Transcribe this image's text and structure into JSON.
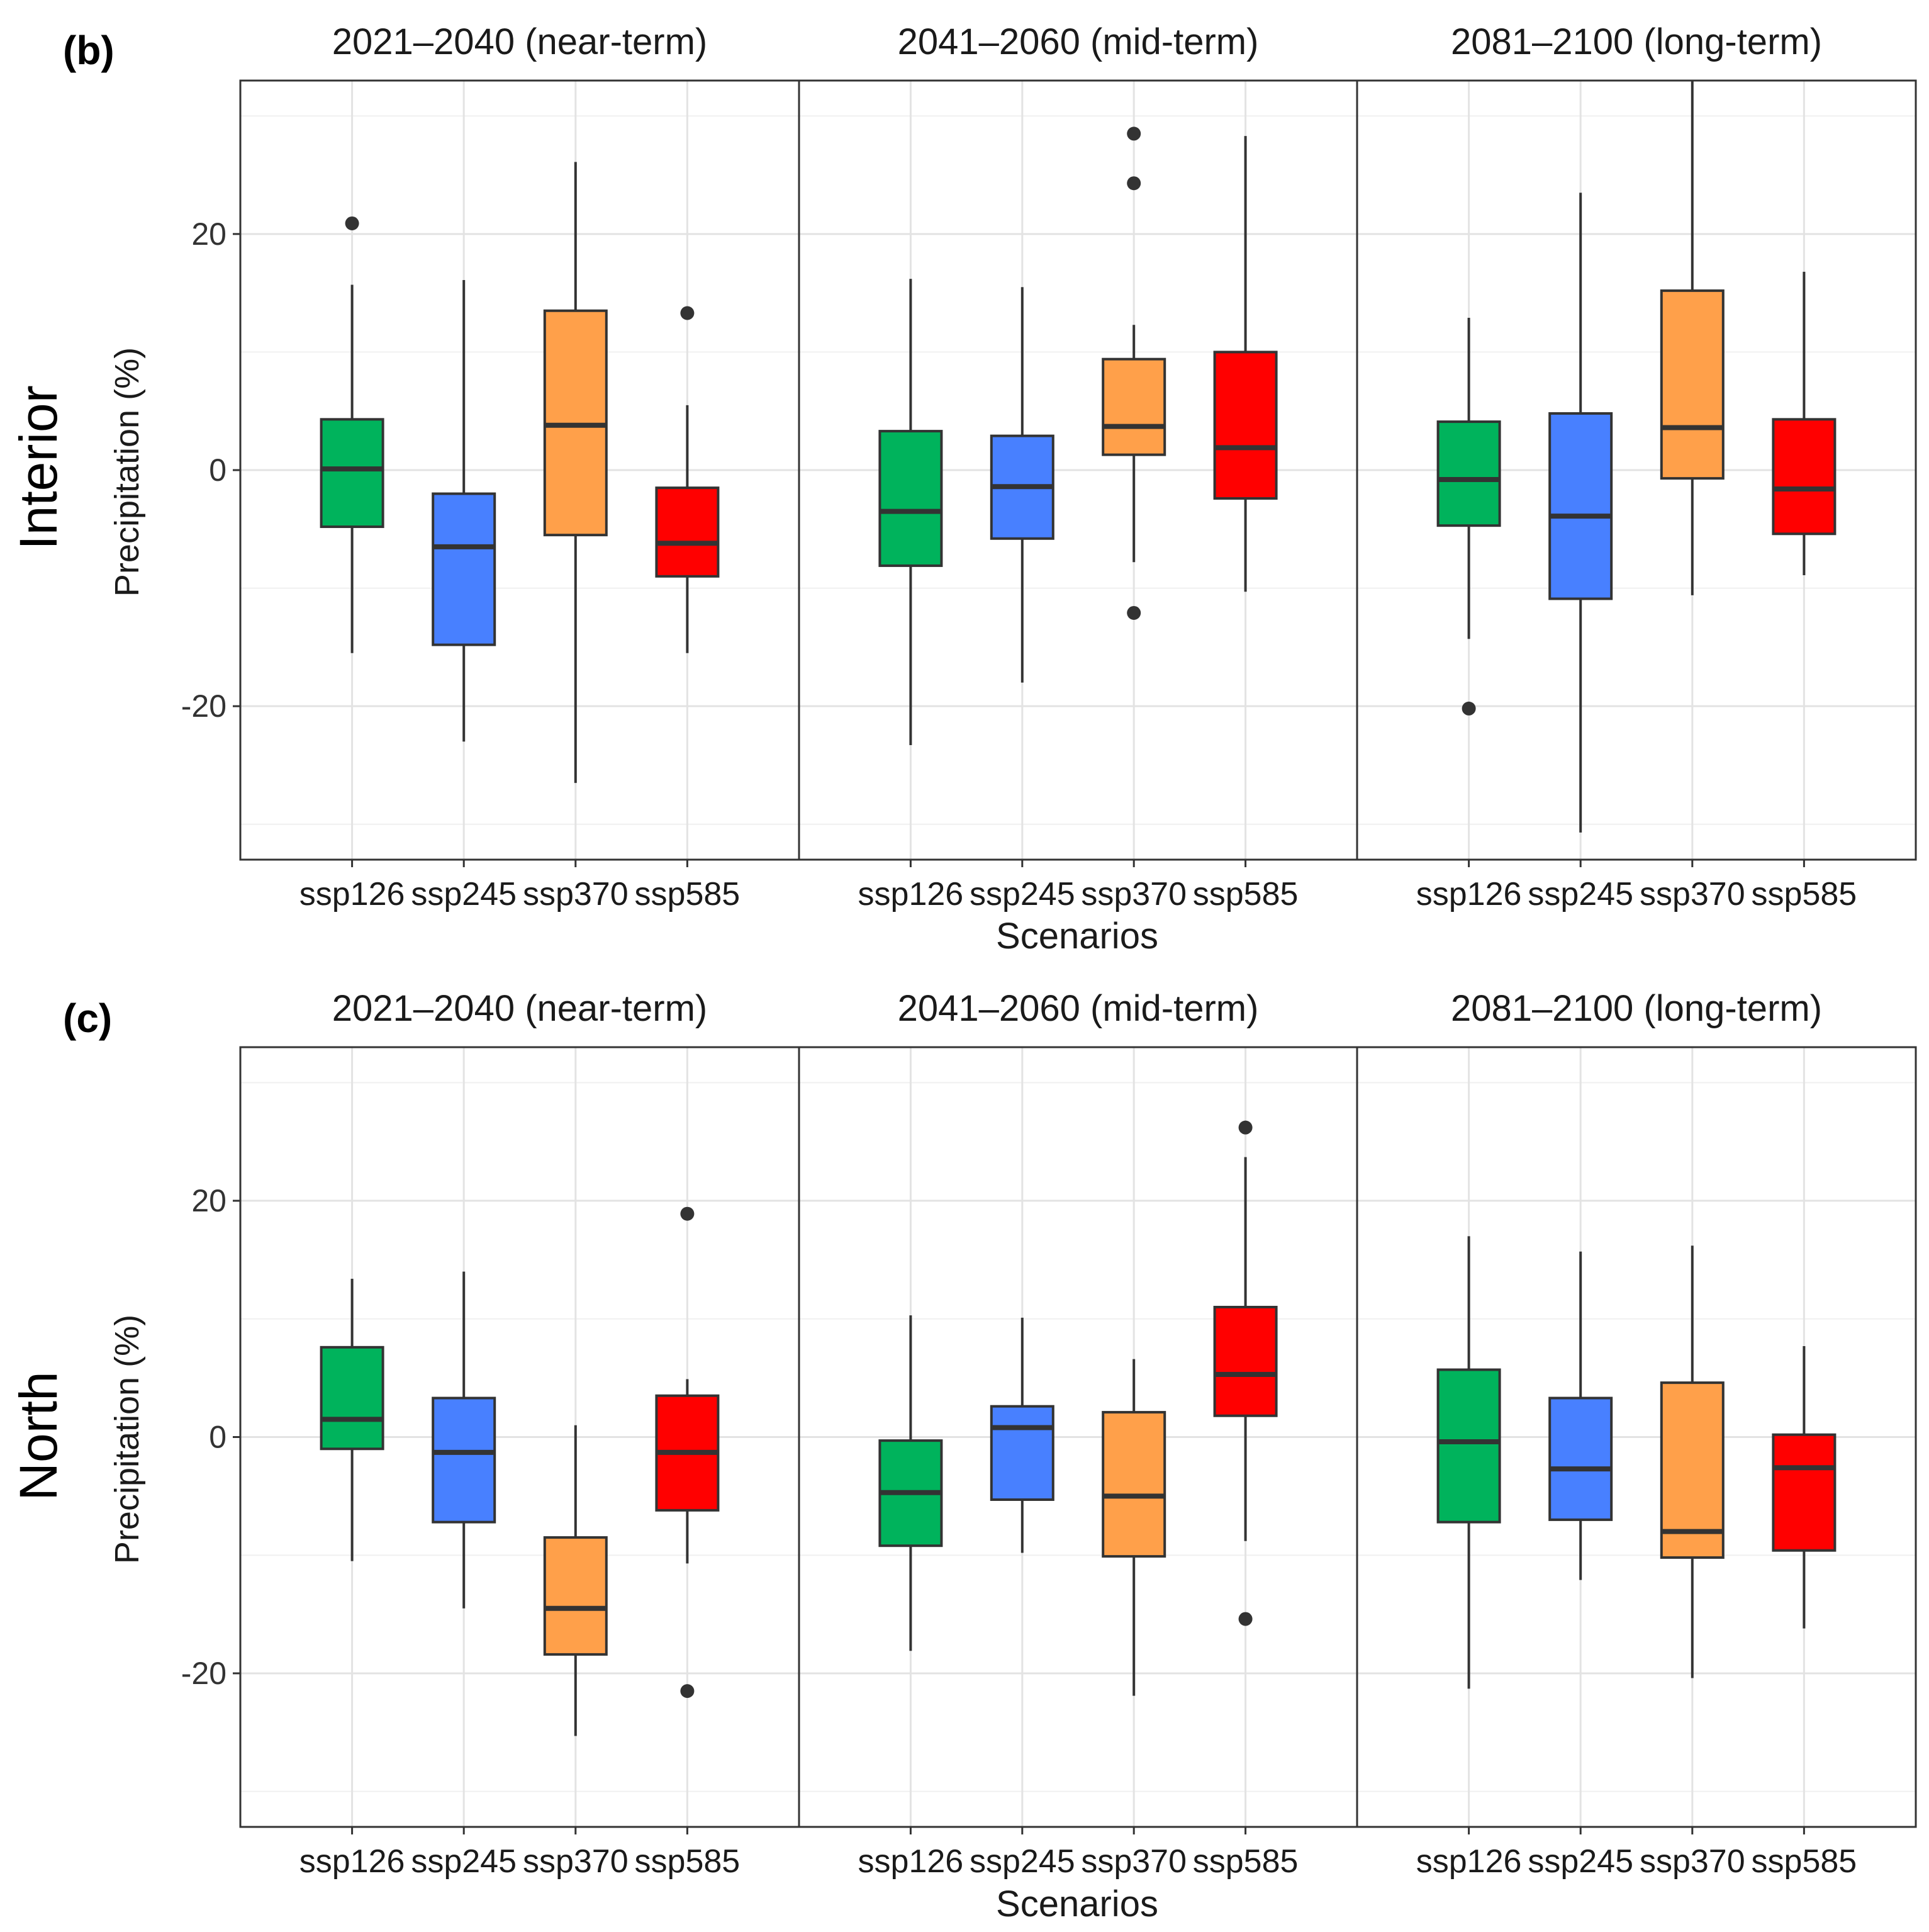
{
  "chart_data": [
    {
      "type": "boxplot",
      "panel_label": "(b)",
      "region": "Interior",
      "ylabel": "Precipitation (%)",
      "xlabel": "Scenarios",
      "ylim": [
        -33,
        33
      ],
      "yticks": [
        -20,
        0,
        20
      ],
      "ytick_labels": [
        "-20",
        "0",
        "20"
      ],
      "categories": [
        "ssp126",
        "ssp245",
        "ssp370",
        "ssp585"
      ],
      "colors": {
        "ssp126": "#00b35c",
        "ssp245": "#4880ff",
        "ssp370": "#ffa04a",
        "ssp585": "#ff0000"
      },
      "facets": [
        {
          "title": "2021–2040 (near-term)",
          "boxes": [
            {
              "scenario": "ssp126",
              "whisker_low": -15.5,
              "q1": -4.8,
              "median": 0.1,
              "q3": 4.3,
              "whisker_high": 15.7,
              "outliers": [
                20.9
              ]
            },
            {
              "scenario": "ssp245",
              "whisker_low": -23.0,
              "q1": -14.8,
              "median": -6.5,
              "q3": -2.0,
              "whisker_high": 16.1,
              "outliers": []
            },
            {
              "scenario": "ssp370",
              "whisker_low": -26.5,
              "q1": -5.5,
              "median": 3.8,
              "q3": 13.5,
              "whisker_high": 26.1,
              "outliers": []
            },
            {
              "scenario": "ssp585",
              "whisker_low": -15.5,
              "q1": -9.0,
              "median": -6.2,
              "q3": -1.5,
              "whisker_high": 5.5,
              "outliers": [
                13.3
              ]
            }
          ]
        },
        {
          "title": "2041–2060 (mid-term)",
          "boxes": [
            {
              "scenario": "ssp126",
              "whisker_low": -23.3,
              "q1": -8.1,
              "median": -3.5,
              "q3": 3.3,
              "whisker_high": 16.2,
              "outliers": []
            },
            {
              "scenario": "ssp245",
              "whisker_low": -18.0,
              "q1": -5.8,
              "median": -1.4,
              "q3": 2.9,
              "whisker_high": 15.5,
              "outliers": []
            },
            {
              "scenario": "ssp370",
              "whisker_low": -7.8,
              "q1": 1.3,
              "median": 3.7,
              "q3": 9.4,
              "whisker_high": 12.3,
              "outliers": [
                28.5,
                24.3,
                -12.1
              ]
            },
            {
              "scenario": "ssp585",
              "whisker_low": -10.3,
              "q1": -2.4,
              "median": 1.9,
              "q3": 10.0,
              "whisker_high": 28.3,
              "outliers": []
            }
          ]
        },
        {
          "title": "2081–2100 (long-term)",
          "boxes": [
            {
              "scenario": "ssp126",
              "whisker_low": -14.3,
              "q1": -4.7,
              "median": -0.8,
              "q3": 4.1,
              "whisker_high": 12.9,
              "outliers": [
                -20.2
              ]
            },
            {
              "scenario": "ssp245",
              "whisker_low": -30.7,
              "q1": -10.9,
              "median": -3.9,
              "q3": 4.8,
              "whisker_high": 23.5,
              "outliers": []
            },
            {
              "scenario": "ssp370",
              "whisker_low": -10.6,
              "q1": -0.7,
              "median": 3.6,
              "q3": 15.2,
              "whisker_high": 33.0,
              "outliers": []
            },
            {
              "scenario": "ssp585",
              "whisker_low": -8.9,
              "q1": -5.4,
              "median": -1.6,
              "q3": 4.3,
              "whisker_high": 16.8,
              "outliers": []
            }
          ]
        }
      ]
    },
    {
      "type": "boxplot",
      "panel_label": "(c)",
      "region": "North",
      "ylabel": "Precipitation (%)",
      "xlabel": "Scenarios",
      "ylim": [
        -33,
        33
      ],
      "yticks": [
        -20,
        0,
        20
      ],
      "ytick_labels": [
        "-20",
        "0",
        "20"
      ],
      "categories": [
        "ssp126",
        "ssp245",
        "ssp370",
        "ssp585"
      ],
      "colors": {
        "ssp126": "#00b35c",
        "ssp245": "#4880ff",
        "ssp370": "#ffa04a",
        "ssp585": "#ff0000"
      },
      "facets": [
        {
          "title": "2021–2040 (near-term)",
          "boxes": [
            {
              "scenario": "ssp126",
              "whisker_low": -10.5,
              "q1": -1.0,
              "median": 1.5,
              "q3": 7.6,
              "whisker_high": 13.4,
              "outliers": []
            },
            {
              "scenario": "ssp245",
              "whisker_low": -14.5,
              "q1": -7.2,
              "median": -1.3,
              "q3": 3.3,
              "whisker_high": 14.0,
              "outliers": []
            },
            {
              "scenario": "ssp370",
              "whisker_low": -25.3,
              "q1": -18.4,
              "median": -14.5,
              "q3": -8.5,
              "whisker_high": 1.0,
              "outliers": []
            },
            {
              "scenario": "ssp585",
              "whisker_low": -10.7,
              "q1": -6.2,
              "median": -1.3,
              "q3": 3.5,
              "whisker_high": 4.9,
              "outliers": [
                18.9,
                -21.5
              ]
            }
          ]
        },
        {
          "title": "2041–2060 (mid-term)",
          "boxes": [
            {
              "scenario": "ssp126",
              "whisker_low": -18.1,
              "q1": -9.2,
              "median": -4.7,
              "q3": -0.3,
              "whisker_high": 10.3,
              "outliers": []
            },
            {
              "scenario": "ssp245",
              "whisker_low": -9.8,
              "q1": -5.3,
              "median": 0.8,
              "q3": 2.6,
              "whisker_high": 10.1,
              "outliers": []
            },
            {
              "scenario": "ssp370",
              "whisker_low": -21.9,
              "q1": -10.1,
              "median": -5.0,
              "q3": 2.1,
              "whisker_high": 6.6,
              "outliers": []
            },
            {
              "scenario": "ssp585",
              "whisker_low": -8.8,
              "q1": 1.8,
              "median": 5.3,
              "q3": 11.0,
              "whisker_high": 23.7,
              "outliers": [
                26.2,
                -15.4
              ]
            }
          ]
        },
        {
          "title": "2081–2100 (long-term)",
          "boxes": [
            {
              "scenario": "ssp126",
              "whisker_low": -21.3,
              "q1": -7.2,
              "median": -0.4,
              "q3": 5.7,
              "whisker_high": 17.0,
              "outliers": []
            },
            {
              "scenario": "ssp245",
              "whisker_low": -12.1,
              "q1": -7.0,
              "median": -2.7,
              "q3": 3.3,
              "whisker_high": 15.7,
              "outliers": []
            },
            {
              "scenario": "ssp370",
              "whisker_low": -20.4,
              "q1": -10.2,
              "median": -8.0,
              "q3": 4.6,
              "whisker_high": 16.2,
              "outliers": []
            },
            {
              "scenario": "ssp585",
              "whisker_low": -16.2,
              "q1": -9.6,
              "median": -2.6,
              "q3": 0.2,
              "whisker_high": 7.7,
              "outliers": []
            }
          ]
        }
      ]
    }
  ]
}
